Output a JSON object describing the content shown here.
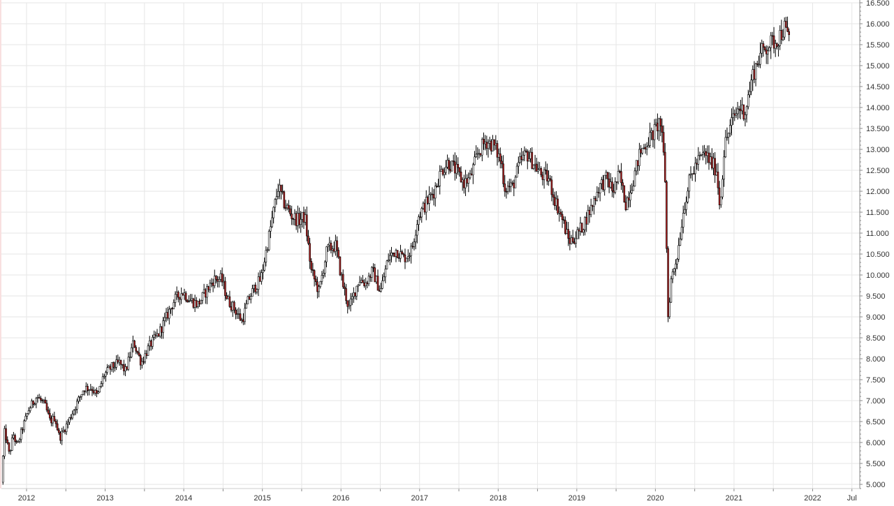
{
  "chart_data": {
    "type": "candlestick",
    "title": "",
    "xlabel": "",
    "ylabel": "",
    "grid": true,
    "up_color": "#ffffff",
    "down_color": "#b22222",
    "wick_color": "#000000",
    "grid_color": "#e6e6e6",
    "axis_color": "#888888",
    "x_range": [
      2011.68,
      2022.6
    ],
    "ylim": [
      4900,
      16500
    ],
    "x_tick_labels": [
      {
        "x": 2012.0,
        "label": "2012"
      },
      {
        "x": 2013.0,
        "label": "2013"
      },
      {
        "x": 2014.0,
        "label": "2014"
      },
      {
        "x": 2015.0,
        "label": "2015"
      },
      {
        "x": 2016.0,
        "label": "2016"
      },
      {
        "x": 2017.0,
        "label": "2017"
      },
      {
        "x": 2018.0,
        "label": "2018"
      },
      {
        "x": 2019.0,
        "label": "2019"
      },
      {
        "x": 2020.0,
        "label": "2020"
      },
      {
        "x": 2021.0,
        "label": "2021"
      },
      {
        "x": 2022.0,
        "label": "2022"
      },
      {
        "x": 2022.5,
        "label": "Jul"
      }
    ],
    "y_ticks": [
      5000,
      5500,
      6000,
      6500,
      7000,
      7500,
      8000,
      8500,
      9000,
      9500,
      10000,
      10500,
      11000,
      11500,
      12000,
      12500,
      13000,
      13500,
      14000,
      14500,
      15000,
      15500,
      16000,
      16500
    ],
    "y_tick_labels": [
      "5.000",
      "5.500",
      "6.000",
      "6.500",
      "7.000",
      "7.500",
      "8.000",
      "8.500",
      "9.000",
      "9.500",
      "10.000",
      "10.500",
      "11.000",
      "11.500",
      "12.000",
      "12.500",
      "13.000",
      "13.500",
      "14.000",
      "14.500",
      "15.000",
      "15.500",
      "16.000",
      "16.500"
    ],
    "anchors": [
      [
        2011.7,
        5050
      ],
      [
        2011.74,
        6300
      ],
      [
        2011.8,
        5700
      ],
      [
        2011.85,
        6200
      ],
      [
        2011.9,
        5900
      ],
      [
        2011.96,
        6300
      ],
      [
        2012.05,
        6800
      ],
      [
        2012.15,
        7100
      ],
      [
        2012.25,
        6900
      ],
      [
        2012.32,
        6500
      ],
      [
        2012.38,
        6600
      ],
      [
        2012.44,
        6100
      ],
      [
        2012.55,
        6500
      ],
      [
        2012.65,
        6900
      ],
      [
        2012.75,
        7300
      ],
      [
        2012.85,
        7300
      ],
      [
        2012.92,
        7100
      ],
      [
        2013.0,
        7600
      ],
      [
        2013.1,
        7800
      ],
      [
        2013.2,
        7900
      ],
      [
        2013.28,
        7700
      ],
      [
        2013.38,
        8400
      ],
      [
        2013.48,
        7900
      ],
      [
        2013.58,
        8300
      ],
      [
        2013.7,
        8600
      ],
      [
        2013.8,
        9000
      ],
      [
        2013.9,
        9400
      ],
      [
        2014.0,
        9600
      ],
      [
        2014.1,
        9400
      ],
      [
        2014.2,
        9300
      ],
      [
        2014.3,
        9600
      ],
      [
        2014.4,
        9900
      ],
      [
        2014.5,
        9900
      ],
      [
        2014.58,
        9400
      ],
      [
        2014.66,
        9200
      ],
      [
        2014.76,
        8900
      ],
      [
        2014.84,
        9400
      ],
      [
        2014.92,
        9700
      ],
      [
        2015.0,
        9900
      ],
      [
        2015.1,
        10900
      ],
      [
        2015.22,
        12100
      ],
      [
        2015.3,
        11700
      ],
      [
        2015.4,
        11400
      ],
      [
        2015.48,
        11300
      ],
      [
        2015.56,
        11400
      ],
      [
        2015.64,
        10100
      ],
      [
        2015.74,
        9600
      ],
      [
        2015.84,
        10600
      ],
      [
        2015.95,
        10700
      ],
      [
        2016.04,
        9800
      ],
      [
        2016.12,
        9200
      ],
      [
        2016.25,
        9900
      ],
      [
        2016.33,
        9800
      ],
      [
        2016.42,
        10100
      ],
      [
        2016.52,
        9600
      ],
      [
        2016.62,
        10400
      ],
      [
        2016.72,
        10600
      ],
      [
        2016.82,
        10400
      ],
      [
        2016.92,
        10600
      ],
      [
        2017.0,
        11400
      ],
      [
        2017.1,
        11700
      ],
      [
        2017.2,
        12000
      ],
      [
        2017.3,
        12500
      ],
      [
        2017.38,
        12700
      ],
      [
        2017.48,
        12500
      ],
      [
        2017.58,
        12200
      ],
      [
        2017.66,
        12300
      ],
      [
        2017.76,
        12900
      ],
      [
        2017.86,
        13200
      ],
      [
        2017.96,
        13100
      ],
      [
        2018.06,
        12700
      ],
      [
        2018.1,
        12100
      ],
      [
        2018.2,
        12100
      ],
      [
        2018.3,
        12700
      ],
      [
        2018.38,
        12900
      ],
      [
        2018.46,
        12700
      ],
      [
        2018.56,
        12400
      ],
      [
        2018.66,
        12300
      ],
      [
        2018.74,
        11800
      ],
      [
        2018.84,
        11300
      ],
      [
        2018.92,
        10800
      ],
      [
        2019.0,
        10900
      ],
      [
        2019.1,
        11200
      ],
      [
        2019.2,
        11600
      ],
      [
        2019.3,
        12100
      ],
      [
        2019.4,
        12300
      ],
      [
        2019.48,
        12000
      ],
      [
        2019.56,
        12400
      ],
      [
        2019.64,
        11700
      ],
      [
        2019.74,
        12300
      ],
      [
        2019.82,
        12900
      ],
      [
        2019.92,
        13200
      ],
      [
        2020.0,
        13400
      ],
      [
        2020.08,
        13700
      ],
      [
        2020.14,
        12500
      ],
      [
        2020.18,
        9000
      ],
      [
        2020.22,
        9900
      ],
      [
        2020.3,
        10500
      ],
      [
        2020.38,
        11600
      ],
      [
        2020.46,
        12300
      ],
      [
        2020.55,
        12700
      ],
      [
        2020.65,
        12900
      ],
      [
        2020.72,
        12700
      ],
      [
        2020.8,
        12500
      ],
      [
        2020.84,
        11600
      ],
      [
        2020.9,
        13100
      ],
      [
        2021.0,
        13700
      ],
      [
        2021.08,
        14000
      ],
      [
        2021.16,
        13900
      ],
      [
        2021.26,
        14800
      ],
      [
        2021.36,
        15300
      ],
      [
        2021.46,
        15500
      ],
      [
        2021.56,
        15600
      ],
      [
        2021.66,
        15900
      ],
      [
        2021.7,
        15700
      ]
    ]
  }
}
